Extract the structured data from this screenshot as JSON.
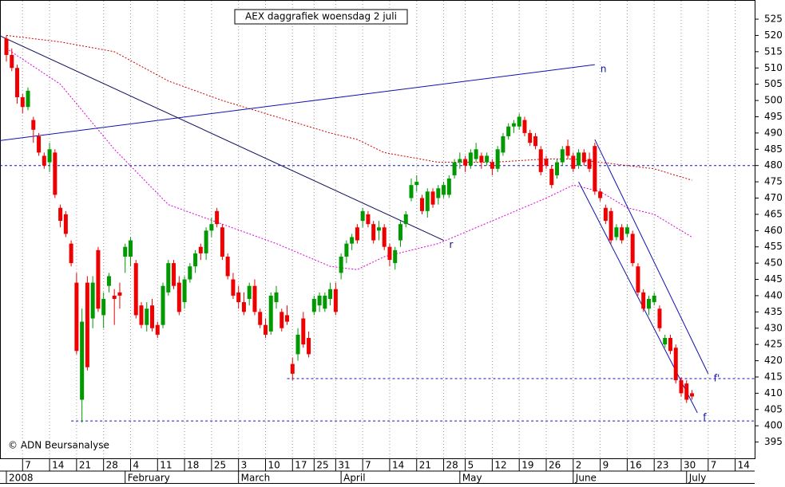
{
  "chart_data": {
    "type": "candlestick",
    "title": "AEX daggrafiek woensdag 2 juli",
    "credit": "© ADN Beursanalyse",
    "up_color": "#009900",
    "down_color": "#ee0000",
    "grid": true,
    "ylim": [
      390,
      530.4
    ],
    "yticks": [
      395,
      400,
      405,
      410,
      415,
      420,
      425,
      430,
      435,
      440,
      445,
      450,
      455,
      460,
      465,
      470,
      475,
      480,
      485,
      490,
      495,
      500,
      505,
      510,
      515,
      520,
      525
    ],
    "x": [
      "2008-01-02",
      "2008-01-03",
      "2008-01-04",
      "2008-01-07",
      "2008-01-08",
      "2008-01-09",
      "2008-01-10",
      "2008-01-11",
      "2008-01-14",
      "2008-01-15",
      "2008-01-16",
      "2008-01-17",
      "2008-01-18",
      "2008-01-21",
      "2008-01-22",
      "2008-01-23",
      "2008-01-24",
      "2008-01-25",
      "2008-01-28",
      "2008-01-29",
      "2008-01-30",
      "2008-01-31",
      "2008-02-01",
      "2008-02-04",
      "2008-02-05",
      "2008-02-06",
      "2008-02-07",
      "2008-02-08",
      "2008-02-11",
      "2008-02-12",
      "2008-02-13",
      "2008-02-14",
      "2008-02-15",
      "2008-02-18",
      "2008-02-19",
      "2008-02-20",
      "2008-02-21",
      "2008-02-22",
      "2008-02-25",
      "2008-02-26",
      "2008-02-27",
      "2008-02-28",
      "2008-02-29",
      "2008-03-03",
      "2008-03-04",
      "2008-03-05",
      "2008-03-06",
      "2008-03-07",
      "2008-03-10",
      "2008-03-11",
      "2008-03-12",
      "2008-03-13",
      "2008-03-14",
      "2008-03-17",
      "2008-03-18",
      "2008-03-19",
      "2008-03-20",
      "2008-03-25",
      "2008-03-26",
      "2008-03-27",
      "2008-03-28",
      "2008-03-31",
      "2008-04-01",
      "2008-04-02",
      "2008-04-03",
      "2008-04-04",
      "2008-04-07",
      "2008-04-08",
      "2008-04-09",
      "2008-04-10",
      "2008-04-11",
      "2008-04-14",
      "2008-04-15",
      "2008-04-16",
      "2008-04-17",
      "2008-04-18",
      "2008-04-21",
      "2008-04-22",
      "2008-04-23",
      "2008-04-24",
      "2008-04-25",
      "2008-04-28",
      "2008-04-29",
      "2008-04-30",
      "2008-05-02",
      "2008-05-05",
      "2008-05-06",
      "2008-05-07",
      "2008-05-08",
      "2008-05-09",
      "2008-05-12",
      "2008-05-13",
      "2008-05-14",
      "2008-05-15",
      "2008-05-16",
      "2008-05-19",
      "2008-05-20",
      "2008-05-21",
      "2008-05-22",
      "2008-05-23",
      "2008-05-26",
      "2008-05-27",
      "2008-05-28",
      "2008-05-29",
      "2008-05-30",
      "2008-06-02",
      "2008-06-03",
      "2008-06-04",
      "2008-06-05",
      "2008-06-06",
      "2008-06-09",
      "2008-06-10",
      "2008-06-11",
      "2008-06-12",
      "2008-06-13",
      "2008-06-16",
      "2008-06-17",
      "2008-06-18",
      "2008-06-19",
      "2008-06-20",
      "2008-06-23",
      "2008-06-24",
      "2008-06-25",
      "2008-06-26",
      "2008-06-27",
      "2008-06-30",
      "2008-07-01",
      "2008-07-02"
    ],
    "open": [
      519,
      514,
      510,
      501,
      498,
      494,
      489,
      483,
      481,
      484,
      467,
      465,
      456,
      444,
      408,
      444,
      433,
      454,
      434,
      443,
      440,
      441,
      452,
      452,
      450,
      437,
      431,
      437,
      431,
      431,
      441,
      450,
      444,
      438,
      445,
      449,
      455,
      453,
      460,
      466,
      461,
      452,
      445,
      441,
      438,
      439,
      443,
      435,
      431,
      429,
      438,
      435,
      434,
      419,
      422,
      433,
      427,
      435,
      437,
      436,
      439,
      442,
      447,
      452,
      456,
      461,
      463,
      465,
      462,
      460,
      461,
      455,
      450,
      457,
      462,
      470,
      474,
      470,
      466,
      472,
      470,
      471,
      471,
      477,
      481,
      482,
      480,
      482,
      483,
      481,
      481,
      479,
      484,
      489,
      492,
      492,
      494,
      490,
      489,
      485,
      482,
      479,
      477,
      481,
      486,
      483,
      480,
      484,
      482,
      486,
      472,
      467,
      466,
      458,
      461,
      459,
      459,
      449,
      441,
      436,
      438,
      436,
      425,
      427,
      424,
      414,
      413,
      410
    ],
    "high": [
      520,
      516,
      511,
      502,
      504,
      495,
      490,
      484,
      487,
      485,
      468,
      466,
      457,
      447,
      436,
      446,
      446,
      455,
      441,
      447,
      442,
      444,
      456,
      458,
      451,
      438,
      438,
      439,
      432,
      444,
      451,
      451,
      446,
      446,
      450,
      454,
      456,
      461,
      464,
      467,
      462,
      453,
      447,
      443,
      441,
      444,
      445,
      436,
      433,
      441,
      443,
      436,
      437,
      421,
      430,
      435,
      429,
      440,
      441,
      441,
      444,
      444,
      453,
      457,
      459,
      462,
      467,
      466,
      463,
      463,
      462,
      456,
      455,
      463,
      466,
      476,
      477,
      471,
      473,
      473,
      474,
      475,
      477,
      482,
      484,
      483,
      485,
      487,
      484,
      484,
      482,
      486,
      490,
      493,
      494,
      496,
      495,
      491,
      490,
      486,
      483,
      480,
      482,
      486,
      488,
      484,
      485,
      485,
      484,
      487,
      473,
      468,
      467,
      462,
      462,
      462,
      460,
      450,
      442,
      440,
      441,
      437,
      428,
      428,
      425,
      415,
      414,
      411
    ],
    "low": [
      512,
      509,
      499,
      496,
      497,
      487,
      483,
      479,
      478,
      470,
      461,
      458,
      449,
      422,
      401,
      417,
      430,
      435,
      430,
      441,
      431,
      436,
      447,
      449,
      433,
      430,
      429,
      429,
      427,
      430,
      440,
      442,
      434,
      436,
      444,
      447,
      451,
      451,
      458,
      461,
      451,
      445,
      439,
      436,
      434,
      437,
      434,
      430,
      427,
      428,
      436,
      429,
      431,
      414,
      420,
      424,
      421,
      434,
      435,
      435,
      437,
      434,
      445,
      450,
      454,
      456,
      461,
      461,
      456,
      457,
      454,
      449,
      448,
      455,
      461,
      469,
      472,
      465,
      464,
      467,
      468,
      470,
      470,
      476,
      479,
      478,
      479,
      481,
      479,
      480,
      477,
      478,
      483,
      488,
      490,
      491,
      489,
      486,
      485,
      477,
      479,
      473,
      476,
      480,
      482,
      478,
      479,
      480,
      478,
      471,
      469,
      462,
      456,
      457,
      456,
      458,
      449,
      440,
      435,
      434,
      437,
      429,
      424,
      422,
      413,
      409,
      407,
      408
    ],
    "close": [
      514,
      510,
      501,
      498,
      503,
      491,
      484,
      480,
      485,
      471,
      463,
      459,
      450,
      423,
      432,
      418,
      444,
      436,
      439,
      446,
      439,
      440,
      455,
      457,
      434,
      431,
      436,
      430,
      428,
      443,
      450,
      443,
      435,
      445,
      449,
      453,
      453,
      460,
      462,
      462,
      452,
      446,
      440,
      438,
      435,
      443,
      435,
      431,
      428,
      440,
      441,
      430,
      432,
      416,
      428,
      425,
      422,
      439,
      440,
      440,
      442,
      435,
      452,
      456,
      458,
      457,
      466,
      462,
      457,
      461,
      455,
      451,
      454,
      462,
      465,
      474,
      475,
      466,
      472,
      468,
      473,
      474,
      476,
      481,
      482,
      480,
      484,
      485,
      481,
      483,
      479,
      485,
      489,
      492,
      493,
      495,
      490,
      487,
      486,
      478,
      480,
      474,
      481,
      485,
      483,
      479,
      484,
      481,
      479,
      472,
      470,
      463,
      457,
      461,
      457,
      461,
      450,
      441,
      436,
      439,
      440,
      430,
      427,
      423,
      414,
      410,
      408,
      409
    ],
    "xticks": [
      {
        "value": "2008-01-07",
        "label": "7"
      },
      {
        "value": "2008-01-14",
        "label": "14"
      },
      {
        "value": "2008-01-21",
        "label": "21"
      },
      {
        "value": "2008-01-28",
        "label": "28"
      },
      {
        "value": "2008-02-04",
        "label": "4"
      },
      {
        "value": "2008-02-11",
        "label": "11"
      },
      {
        "value": "2008-02-18",
        "label": "18"
      },
      {
        "value": "2008-02-25",
        "label": "25"
      },
      {
        "value": "2008-03-03",
        "label": "3"
      },
      {
        "value": "2008-03-10",
        "label": "10"
      },
      {
        "value": "2008-03-17",
        "label": "17"
      },
      {
        "value": "2008-03-25",
        "label": "25"
      },
      {
        "value": "2008-03-31",
        "label": "31"
      },
      {
        "value": "2008-04-07",
        "label": "7"
      },
      {
        "value": "2008-04-14",
        "label": "14"
      },
      {
        "value": "2008-04-21",
        "label": "21"
      },
      {
        "value": "2008-04-28",
        "label": "28"
      },
      {
        "value": "2008-05-05",
        "label": "5"
      },
      {
        "value": "2008-05-12",
        "label": "12"
      },
      {
        "value": "2008-05-19",
        "label": "19"
      },
      {
        "value": "2008-05-26",
        "label": "26"
      },
      {
        "value": "2008-06-02",
        "label": "2"
      },
      {
        "value": "2008-06-09",
        "label": "9"
      },
      {
        "value": "2008-06-16",
        "label": "16"
      },
      {
        "value": "2008-06-23",
        "label": "23"
      },
      {
        "value": "2008-06-30",
        "label": "30"
      },
      {
        "value": "2008-07-07",
        "label": "7"
      },
      {
        "value": "2008-07-14",
        "label": "14"
      }
    ],
    "month_ticks": [
      {
        "value": "2008-01-02",
        "label": "2008"
      },
      {
        "value": "2008-02-01",
        "label": "February"
      },
      {
        "value": "2008-03-03",
        "label": "March"
      },
      {
        "value": "2008-04-01",
        "label": "April"
      },
      {
        "value": "2008-05-02",
        "label": "May"
      },
      {
        "value": "2008-06-02",
        "label": "June"
      },
      {
        "value": "2008-07-01",
        "label": "July"
      }
    ],
    "overlays": [
      {
        "color": "#cc0000",
        "x": [
          "2008-01-02",
          "2008-01-16",
          "2008-01-30",
          "2008-02-13",
          "2008-02-27",
          "2008-03-12",
          "2008-03-28",
          "2008-04-04",
          "2008-04-11",
          "2008-04-25",
          "2008-05-12",
          "2008-05-26",
          "2008-06-02",
          "2008-06-09",
          "2008-06-16",
          "2008-06-23",
          "2008-07-02"
        ],
        "values": [
          520,
          518,
          515,
          506,
          500,
          495,
          490,
          488,
          484,
          481,
          481,
          482,
          482,
          481,
          480,
          479,
          475.5
        ]
      },
      {
        "color": "#dd00dd",
        "x": [
          "2008-01-02",
          "2008-01-16",
          "2008-01-30",
          "2008-02-13",
          "2008-02-27",
          "2008-03-12",
          "2008-03-28",
          "2008-04-04",
          "2008-04-11",
          "2008-04-25",
          "2008-05-12",
          "2008-05-26",
          "2008-06-02",
          "2008-06-09",
          "2008-06-16",
          "2008-06-23",
          "2008-07-02"
        ],
        "values": [
          516,
          505,
          485,
          468,
          462,
          456,
          449,
          448,
          452,
          456,
          463,
          470,
          474,
          472,
          467,
          465,
          458
        ]
      }
    ],
    "trendlines": [
      {
        "label": "n",
        "color": "#1010b0",
        "x": [
          "2007-12-31",
          "2008-06-06"
        ],
        "values": [
          487.5,
          511
        ]
      },
      {
        "label": "r",
        "color": "#101060",
        "x": [
          "2007-12-31",
          "2008-04-28"
        ],
        "values": [
          520.5,
          457
        ]
      },
      {
        "label": "f'",
        "color": "#1010b0",
        "x": [
          "2008-06-06",
          "2008-07-07"
        ],
        "values": [
          488,
          416
        ]
      },
      {
        "label": "f",
        "color": "#1010b0",
        "x": [
          "2008-06-03",
          "2008-07-03"
        ],
        "values": [
          475,
          404
        ]
      }
    ],
    "levels": [
      {
        "value": 480,
        "from": "2007-12-31",
        "color": "#1010c0"
      },
      {
        "value": 414.5,
        "from": "2008-03-14",
        "color": "#1010c0"
      },
      {
        "value": 401.5,
        "from": "2008-01-18",
        "color": "#1010c0"
      }
    ]
  }
}
